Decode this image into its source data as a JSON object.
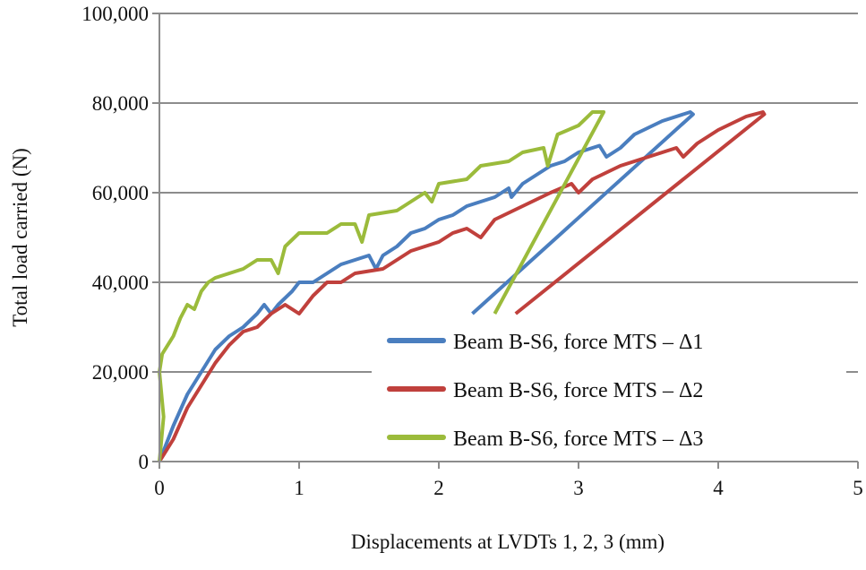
{
  "chart_data": {
    "type": "line",
    "title": "",
    "xlabel": "Displacements at LVDTs 1, 2, 3 (mm)",
    "ylabel": "Total load carried (N)",
    "xlim": [
      0,
      5
    ],
    "ylim": [
      0,
      100000
    ],
    "xticks": [
      "0",
      "1",
      "2",
      "3",
      "4",
      "5"
    ],
    "yticks": [
      "0",
      "20,000",
      "40,000",
      "60,000",
      "80,000",
      "100,000"
    ],
    "grid": "horizontal",
    "legend_position": "bottom-right",
    "series": [
      {
        "name": "Beam B-S6, force MTS – Δ1",
        "color": "#4a7ebf",
        "points": [
          [
            0,
            0
          ],
          [
            0.1,
            8000
          ],
          [
            0.2,
            15000
          ],
          [
            0.3,
            20000
          ],
          [
            0.4,
            25000
          ],
          [
            0.5,
            28000
          ],
          [
            0.6,
            30000
          ],
          [
            0.7,
            33000
          ],
          [
            0.75,
            35000
          ],
          [
            0.8,
            33000
          ],
          [
            0.85,
            35000
          ],
          [
            0.95,
            38000
          ],
          [
            1.0,
            40000
          ],
          [
            1.1,
            40000
          ],
          [
            1.2,
            42000
          ],
          [
            1.3,
            44000
          ],
          [
            1.4,
            45000
          ],
          [
            1.5,
            46000
          ],
          [
            1.55,
            43000
          ],
          [
            1.6,
            46000
          ],
          [
            1.7,
            48000
          ],
          [
            1.8,
            51000
          ],
          [
            1.9,
            52000
          ],
          [
            2.0,
            54000
          ],
          [
            2.1,
            55000
          ],
          [
            2.2,
            57000
          ],
          [
            2.4,
            59000
          ],
          [
            2.5,
            61000
          ],
          [
            2.52,
            59000
          ],
          [
            2.6,
            62000
          ],
          [
            2.8,
            66000
          ],
          [
            2.9,
            67000
          ],
          [
            3.0,
            69000
          ],
          [
            3.15,
            70500
          ],
          [
            3.2,
            68000
          ],
          [
            3.3,
            70000
          ],
          [
            3.4,
            73000
          ],
          [
            3.6,
            76000
          ],
          [
            3.8,
            78000
          ],
          [
            3.82,
            77500
          ],
          [
            2.24,
            33000
          ]
        ]
      },
      {
        "name": "Beam B-S6, force MTS – Δ2",
        "color": "#c0403c",
        "points": [
          [
            0,
            0
          ],
          [
            0.1,
            5000
          ],
          [
            0.2,
            12000
          ],
          [
            0.3,
            17000
          ],
          [
            0.4,
            22000
          ],
          [
            0.5,
            26000
          ],
          [
            0.6,
            29000
          ],
          [
            0.7,
            30000
          ],
          [
            0.8,
            33000
          ],
          [
            0.9,
            35000
          ],
          [
            1.0,
            33000
          ],
          [
            1.1,
            37000
          ],
          [
            1.2,
            40000
          ],
          [
            1.3,
            40000
          ],
          [
            1.4,
            42000
          ],
          [
            1.6,
            43000
          ],
          [
            1.7,
            45000
          ],
          [
            1.8,
            47000
          ],
          [
            1.9,
            48000
          ],
          [
            2.0,
            49000
          ],
          [
            2.1,
            51000
          ],
          [
            2.2,
            52000
          ],
          [
            2.3,
            50000
          ],
          [
            2.4,
            54000
          ],
          [
            2.6,
            57000
          ],
          [
            2.8,
            60000
          ],
          [
            2.95,
            62000
          ],
          [
            3.0,
            60000
          ],
          [
            3.1,
            63000
          ],
          [
            3.3,
            66000
          ],
          [
            3.5,
            68000
          ],
          [
            3.7,
            70000
          ],
          [
            3.75,
            68000
          ],
          [
            3.85,
            71000
          ],
          [
            4.0,
            74000
          ],
          [
            4.2,
            77000
          ],
          [
            4.32,
            78000
          ],
          [
            4.33,
            77500
          ],
          [
            2.55,
            33000
          ]
        ]
      },
      {
        "name": "Beam B-S6, force MTS – Δ3",
        "color": "#9bbb3b",
        "points": [
          [
            0,
            0
          ],
          [
            0.03,
            10000
          ],
          [
            0,
            20000
          ],
          [
            0.02,
            24000
          ],
          [
            0.1,
            28000
          ],
          [
            0.15,
            32000
          ],
          [
            0.2,
            35000
          ],
          [
            0.25,
            34000
          ],
          [
            0.3,
            38000
          ],
          [
            0.35,
            40000
          ],
          [
            0.4,
            41000
          ],
          [
            0.5,
            42000
          ],
          [
            0.6,
            43000
          ],
          [
            0.7,
            45000
          ],
          [
            0.8,
            45000
          ],
          [
            0.85,
            42000
          ],
          [
            0.9,
            48000
          ],
          [
            1.0,
            51000
          ],
          [
            1.2,
            51000
          ],
          [
            1.3,
            53000
          ],
          [
            1.4,
            53000
          ],
          [
            1.45,
            49000
          ],
          [
            1.5,
            55000
          ],
          [
            1.7,
            56000
          ],
          [
            1.8,
            58000
          ],
          [
            1.9,
            60000
          ],
          [
            1.95,
            58000
          ],
          [
            2.0,
            62000
          ],
          [
            2.2,
            63000
          ],
          [
            2.3,
            66000
          ],
          [
            2.5,
            67000
          ],
          [
            2.6,
            69000
          ],
          [
            2.75,
            70000
          ],
          [
            2.78,
            66000
          ],
          [
            2.85,
            73000
          ],
          [
            3.0,
            75000
          ],
          [
            3.1,
            78000
          ],
          [
            3.18,
            78000
          ],
          [
            2.4,
            33000
          ]
        ]
      }
    ]
  }
}
